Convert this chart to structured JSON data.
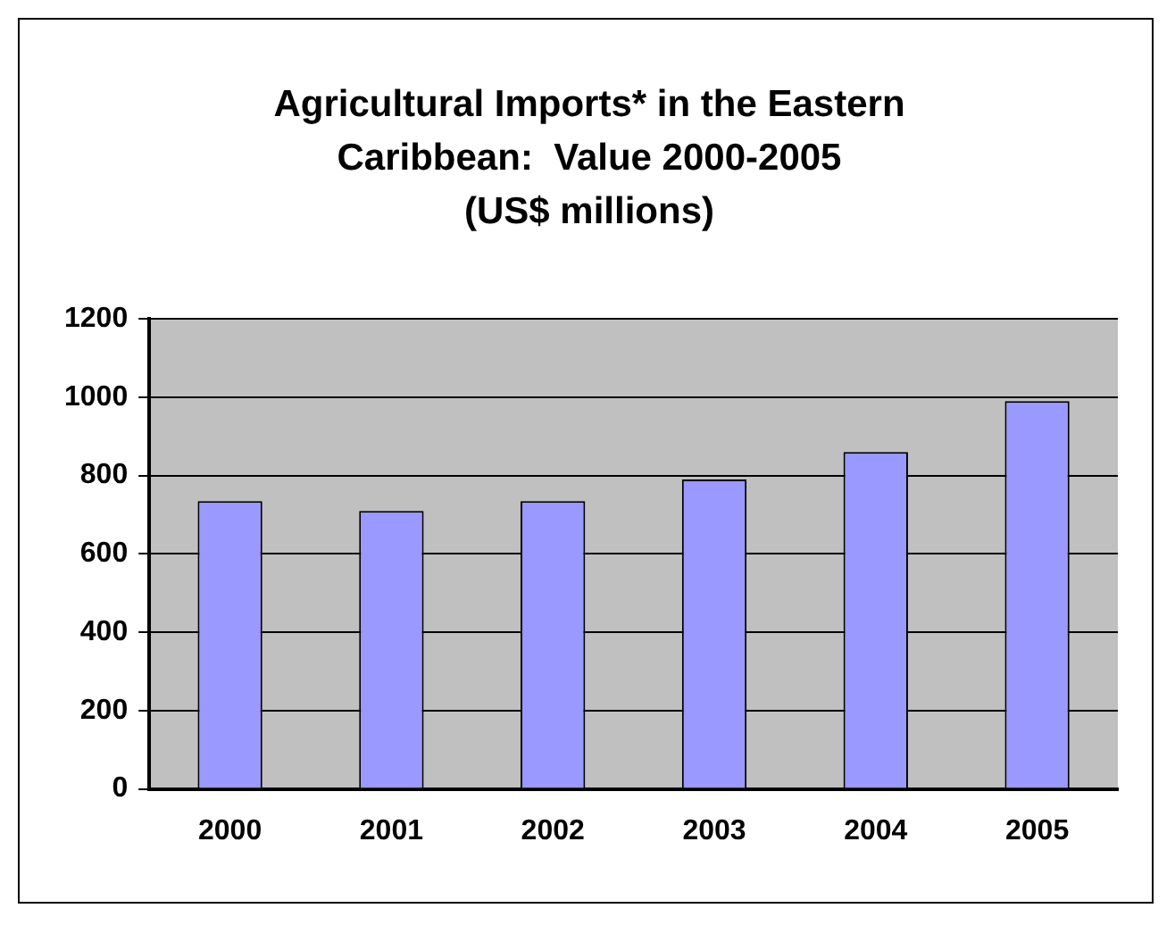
{
  "chart_data": {
    "type": "bar",
    "title": "Agricultural Imports* in the Eastern\nCaribbean:  Value 2000-2005\n(US$ millions)",
    "categories": [
      "2000",
      "2001",
      "2002",
      "2003",
      "2004",
      "2005"
    ],
    "values": [
      735,
      710,
      735,
      790,
      860,
      990
    ],
    "color": "#9999ff",
    "ylim": [
      0,
      1200
    ],
    "yticks": [
      0,
      200,
      400,
      600,
      800,
      {
        "value": 1000,
        "label": "1000"
      },
      {
        "value": 1200,
        "label": "1200"
      }
    ],
    "grid": "y",
    "legend": false
  }
}
